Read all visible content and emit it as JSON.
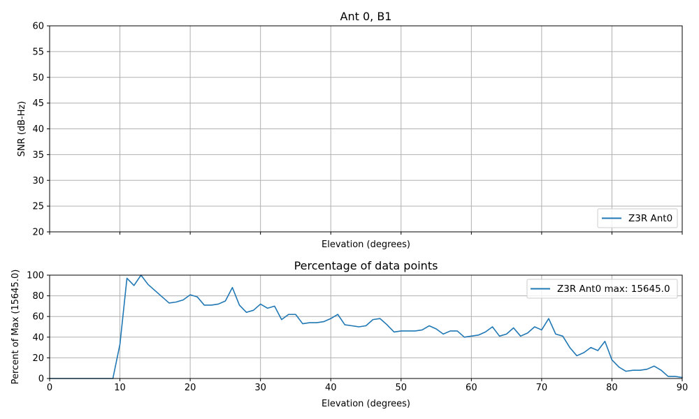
{
  "colors": {
    "series": "#1f77b4",
    "grid": "#b0b0b0"
  },
  "chart_data": [
    {
      "type": "line",
      "title": "Ant 0, B1",
      "xlabel": "Elevation (degrees)",
      "ylabel": "SNR (dB-Hz)",
      "xlim": [
        0,
        90
      ],
      "ylim": [
        20,
        60
      ],
      "xticks": [
        0,
        10,
        20,
        30,
        40,
        50,
        60,
        70,
        80,
        90
      ],
      "xtick_labels_visible": false,
      "yticks": [
        20,
        25,
        30,
        35,
        40,
        45,
        50,
        55,
        60
      ],
      "grid": true,
      "legend_loc": "lower-right",
      "series": [
        {
          "name": "Z3R Ant0",
          "x": [],
          "y": []
        }
      ]
    },
    {
      "type": "line",
      "title": "Percentage of data points",
      "xlabel": "Elevation (degrees)",
      "ylabel": "Percent of Max (15645.0)",
      "xlim": [
        0,
        90
      ],
      "ylim": [
        0,
        100
      ],
      "xticks": [
        0,
        10,
        20,
        30,
        40,
        50,
        60,
        70,
        80,
        90
      ],
      "xtick_labels_visible": true,
      "yticks": [
        0,
        20,
        40,
        60,
        80,
        100
      ],
      "grid": true,
      "legend_loc": "upper-right",
      "series": [
        {
          "name": "Z3R Ant0 max: 15645.0",
          "x": [
            0,
            1,
            2,
            3,
            4,
            5,
            6,
            7,
            8,
            9,
            10,
            11,
            12,
            13,
            14,
            15,
            16,
            17,
            18,
            19,
            20,
            21,
            22,
            23,
            24,
            25,
            26,
            27,
            28,
            29,
            30,
            31,
            32,
            33,
            34,
            35,
            36,
            37,
            38,
            39,
            40,
            41,
            42,
            43,
            44,
            45,
            46,
            47,
            48,
            49,
            50,
            51,
            52,
            53,
            54,
            55,
            56,
            57,
            58,
            59,
            60,
            61,
            62,
            63,
            64,
            65,
            66,
            67,
            68,
            69,
            70,
            71,
            72,
            73,
            74,
            75,
            76,
            77,
            78,
            79,
            80,
            81,
            82,
            83,
            84,
            85,
            86,
            87,
            88,
            89,
            90
          ],
          "y": [
            0,
            0,
            0,
            0,
            0,
            0,
            0,
            0,
            0,
            0,
            33,
            97,
            90,
            100,
            91,
            85,
            79,
            73,
            74,
            76,
            81,
            79,
            71,
            71,
            72,
            75,
            88,
            71,
            64,
            66,
            72,
            68,
            70,
            57,
            62,
            62,
            53,
            54,
            54,
            55,
            58,
            62,
            52,
            51,
            50,
            51,
            57,
            58,
            52,
            45,
            46,
            46,
            46,
            47,
            51,
            48,
            43,
            46,
            46,
            40,
            41,
            42,
            45,
            50,
            41,
            43,
            49,
            41,
            44,
            50,
            47,
            58,
            43,
            41,
            30,
            22,
            25,
            30,
            27,
            36,
            18,
            11,
            7,
            8,
            8,
            9,
            12,
            8,
            2,
            2,
            1
          ]
        }
      ]
    }
  ]
}
